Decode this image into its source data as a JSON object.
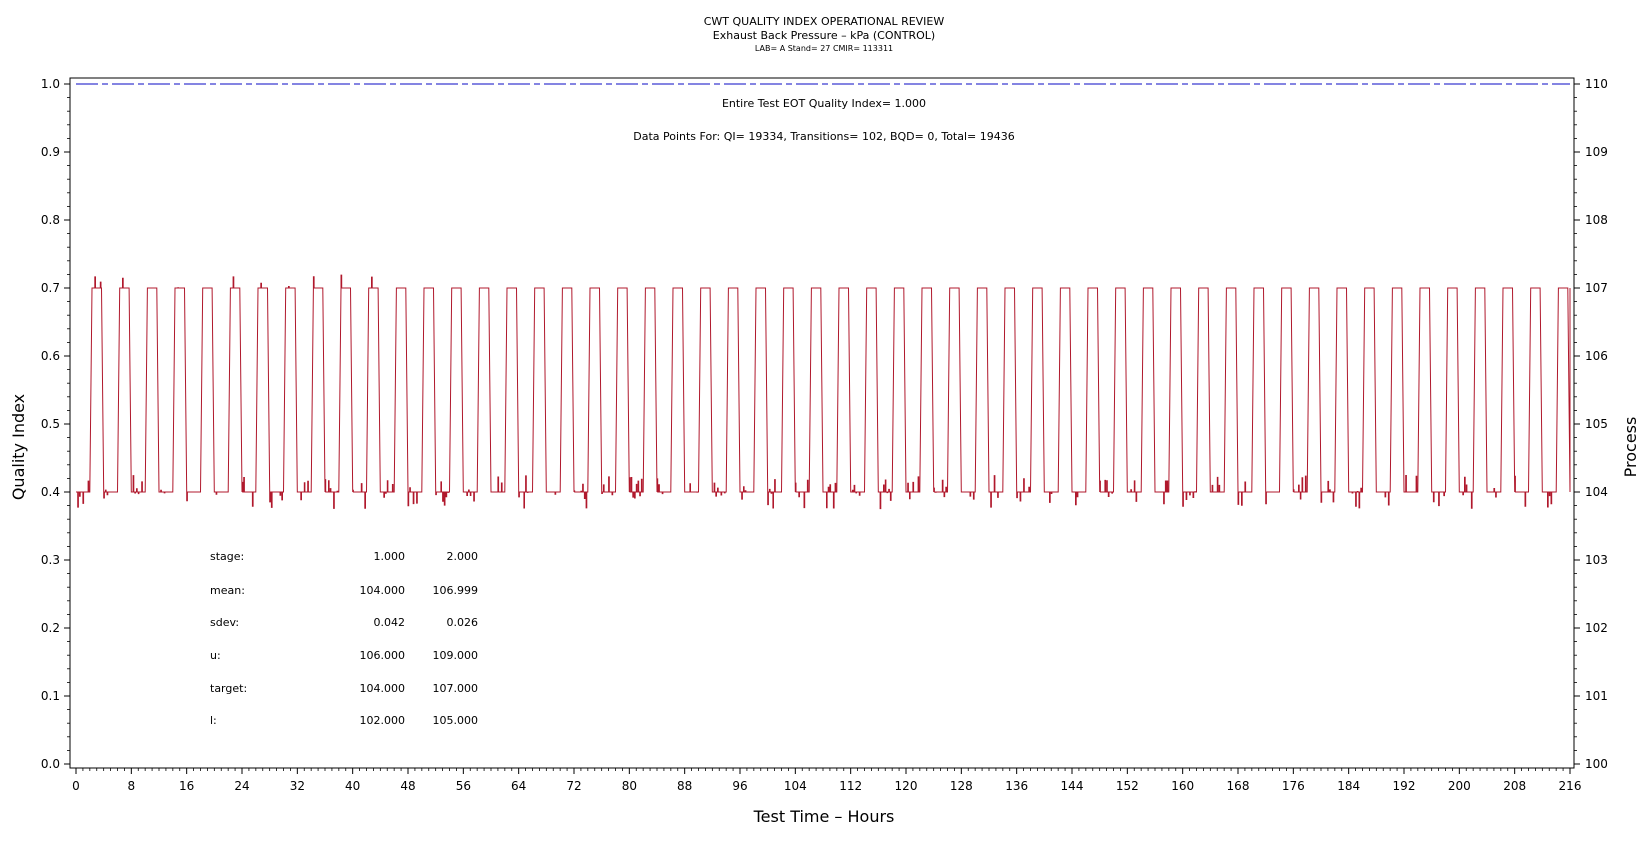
{
  "chart_data": {
    "type": "line",
    "title": "CWT QUALITY INDEX OPERATIONAL REVIEW",
    "subtitle": "Exhaust Back Pressure – kPa (CONTROL)",
    "subtitle2": "LAB= A Stand= 27 CMIR= 113311",
    "xlabel": "Test Time – Hours",
    "ylabel_left": "Quality Index",
    "ylabel_right": "Process",
    "xlim": [
      0,
      216
    ],
    "ylim_left": [
      0,
      1
    ],
    "ylim_right": [
      100,
      110
    ],
    "x_ticks": [
      "0",
      "8",
      "16",
      "24",
      "32",
      "40",
      "48",
      "56",
      "64",
      "72",
      "80",
      "88",
      "96",
      "104",
      "112",
      "120",
      "128",
      "136",
      "144",
      "152",
      "160",
      "168",
      "176",
      "184",
      "192",
      "200",
      "208",
      "216"
    ],
    "y_left_ticks": [
      "0.0",
      "0.1",
      "0.2",
      "0.3",
      "0.4",
      "0.5",
      "0.6",
      "0.7",
      "0.8",
      "0.9",
      "1.0"
    ],
    "y_right_ticks": [
      "100",
      "101",
      "102",
      "103",
      "104",
      "105",
      "106",
      "107",
      "108",
      "109",
      "110"
    ],
    "grid": false,
    "annotations": {
      "quality_index": "Entire Test EOT Quality Index=   1.000",
      "data_points": "Data Points For: QI= 19334, Transitions=   102, BQD=     0, Total= 19436"
    },
    "series": [
      {
        "axis": "left",
        "color": "#3a3ad0",
        "style": "dashed",
        "x": [
          0,
          216
        ],
        "y": [
          1.0,
          1.0
        ]
      },
      {
        "axis": "right",
        "color": "#b0182c",
        "style": "step",
        "cycle_period_hours": 4,
        "low_value": 104.0,
        "high_value": 107.0,
        "segments": [
          {
            "x": 0.0,
            "y": 104.0
          },
          {
            "x": 3.0,
            "y": 104.0
          },
          {
            "x": 3.3,
            "y": 107.0
          },
          {
            "x": 3.9,
            "y": 107.0
          },
          {
            "x": 4.1,
            "y": 104.0
          },
          {
            "x": 216.0,
            "y": 107.0
          }
        ]
      }
    ],
    "stats_table": {
      "labels": [
        "stage:",
        "mean:",
        "sdev:",
        "u:",
        "target:",
        "l:"
      ],
      "col1": [
        "1.000",
        "104.000",
        "0.042",
        "106.000",
        "104.000",
        "102.000"
      ],
      "col2": [
        "2.000",
        "106.999",
        "0.026",
        "109.000",
        "107.000",
        "105.000"
      ]
    }
  },
  "colors": {
    "process_line": "#b0182c",
    "qi_line": "#3a3ad0",
    "axis": "#000000"
  }
}
